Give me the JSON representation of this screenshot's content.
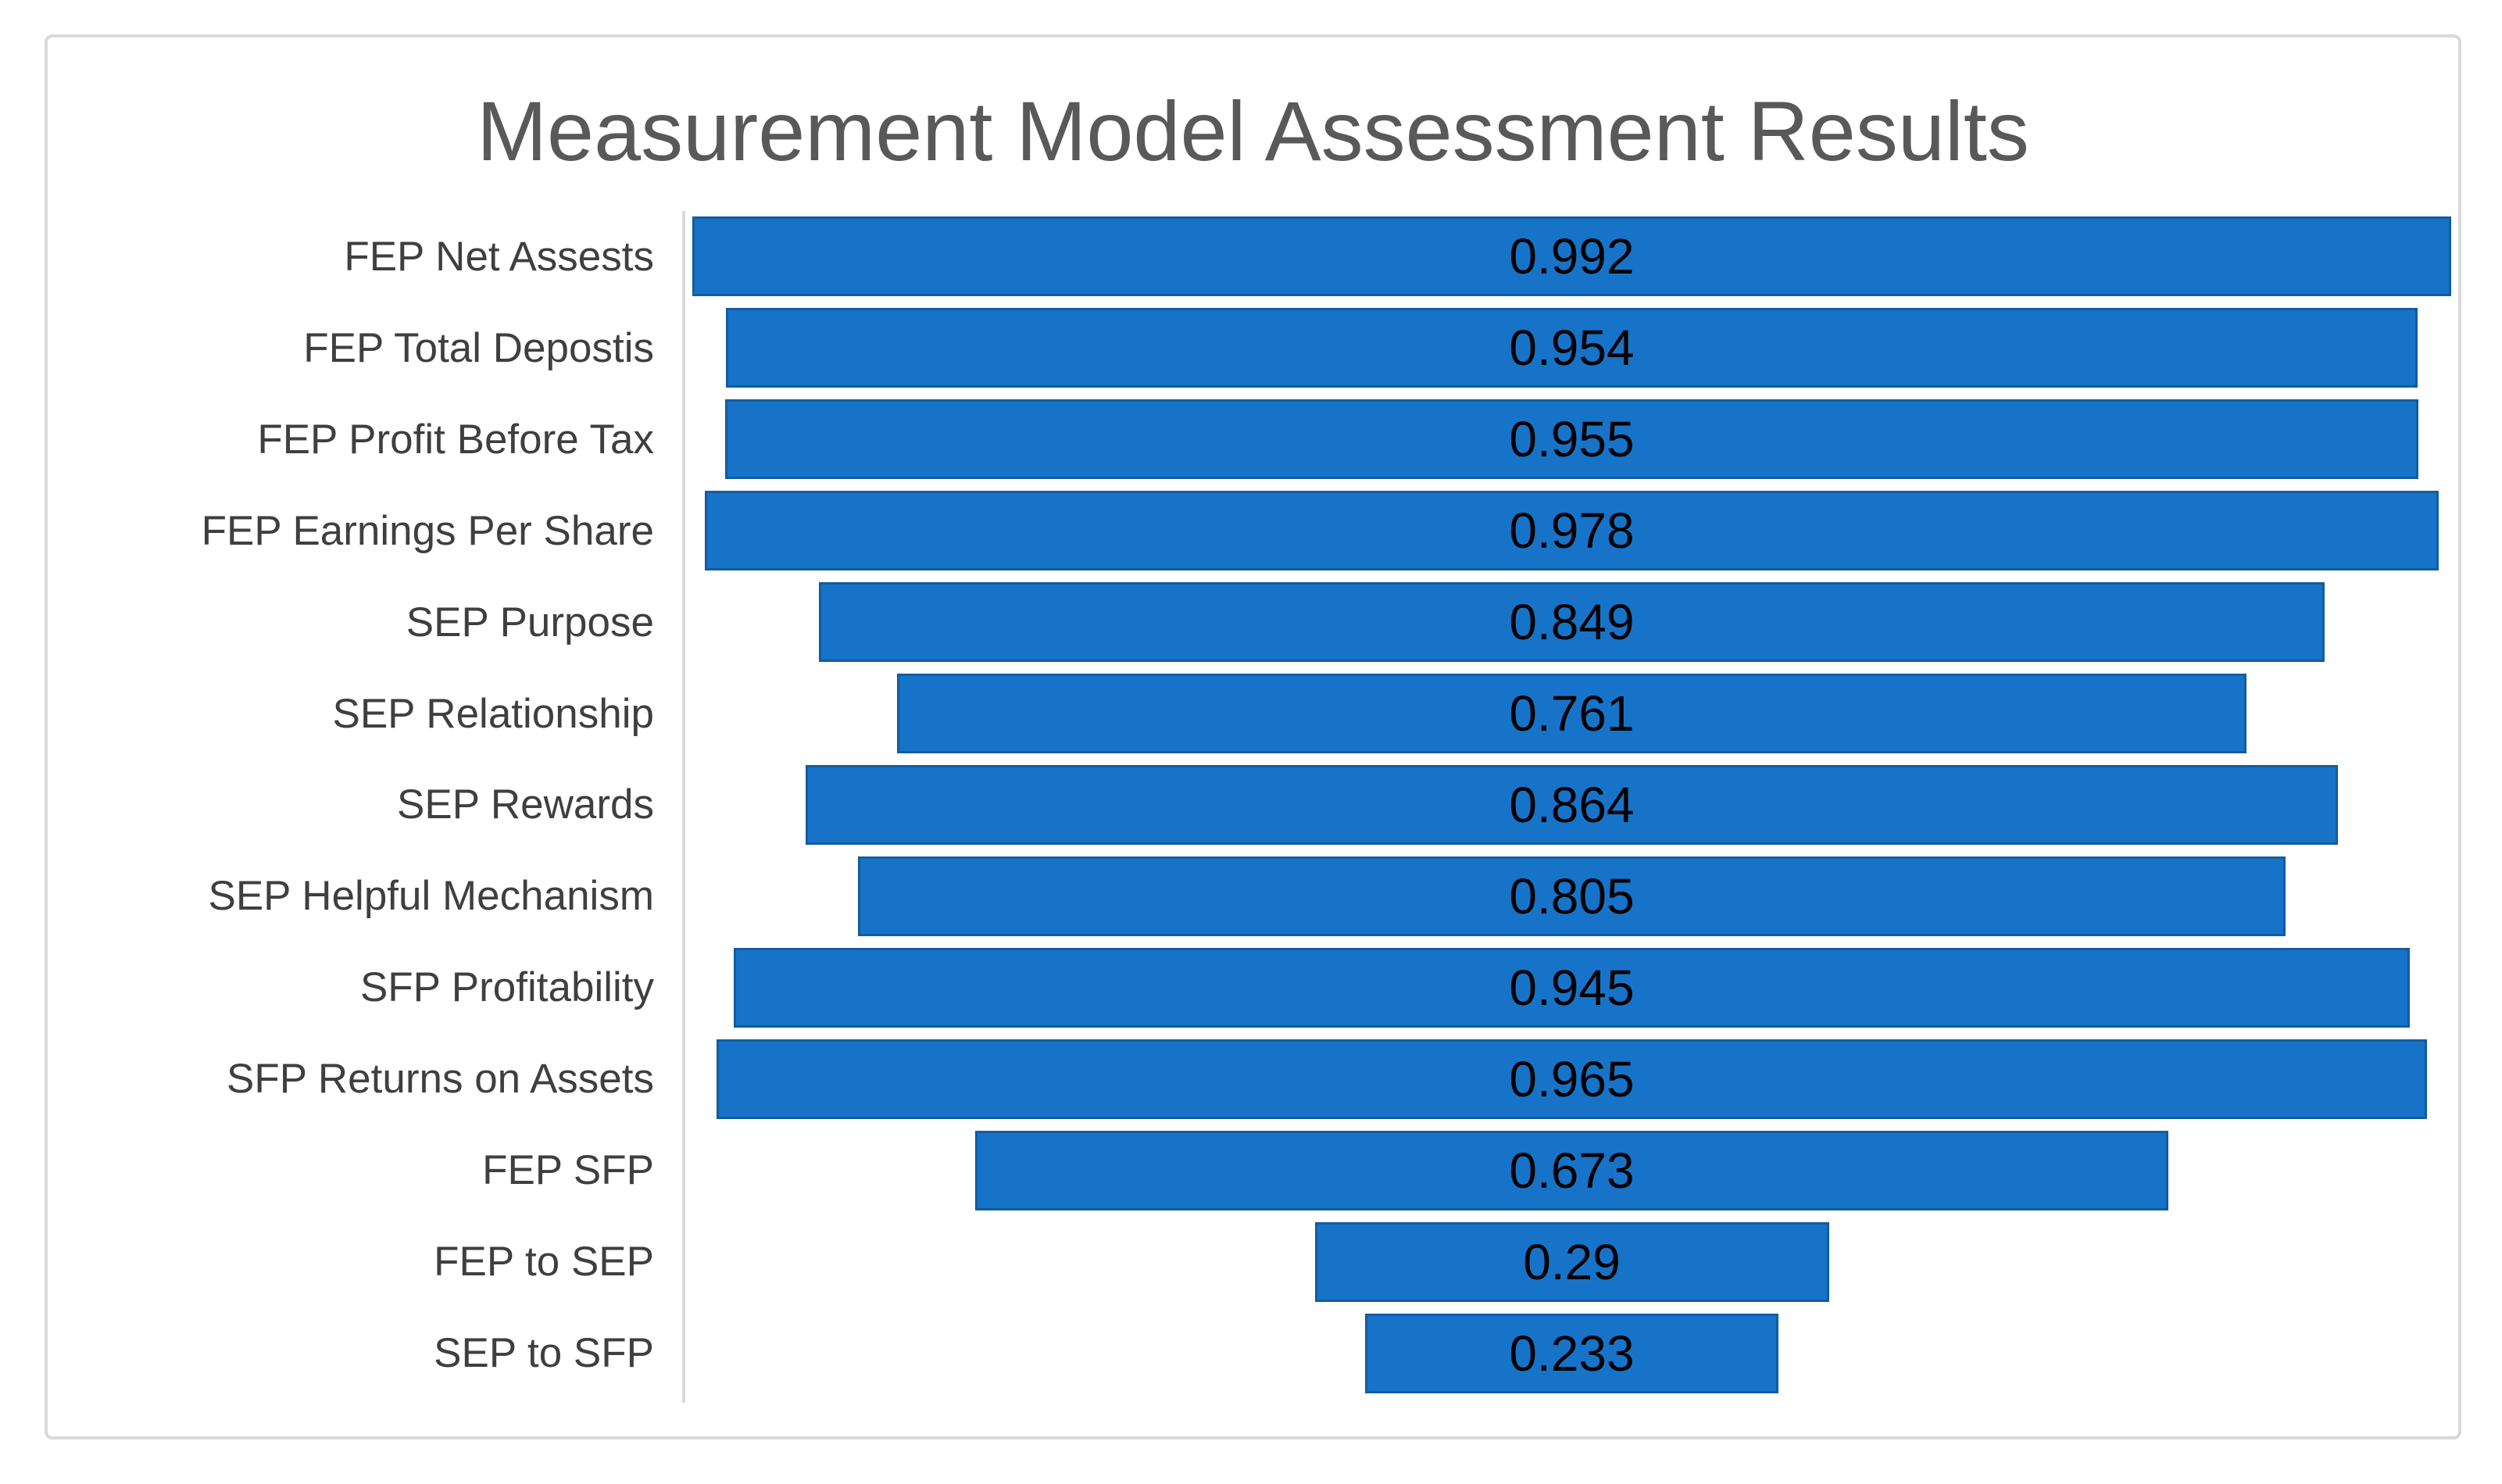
{
  "chart_data": {
    "type": "bar",
    "variant": "horizontal-centered-funnel",
    "title": "Measurement Model Assessment Results",
    "categories": [
      "FEP Net Assests",
      "FEP Total Depostis",
      "FEP Profit Before Tax",
      "FEP Earnings Per Share",
      "SEP Purpose",
      "SEP Relationship",
      "SEP Rewards",
      "SEP Helpful Mechanism",
      "SFP Profitability",
      "SFP Returns on Assets",
      "FEP SFP",
      "FEP to SEP",
      "SEP to SFP"
    ],
    "values": [
      0.992,
      0.954,
      0.955,
      0.978,
      0.849,
      0.761,
      0.864,
      0.805,
      0.945,
      0.965,
      0.673,
      0.29,
      0.233
    ],
    "data_labels": [
      "0.992",
      "0.954",
      "0.955",
      "0.978",
      "0.849",
      "0.761",
      "0.864",
      "0.805",
      "0.945",
      "0.965",
      "0.673",
      "0.29",
      "0.233"
    ],
    "xlim": [
      0,
      1
    ],
    "grid": false,
    "legend": false,
    "bars_alignment": "centered",
    "colors": {
      "bar_fill": "#1673c8",
      "bar_border": "#135ca0",
      "title_text": "#595959",
      "category_text": "#3f3f3f",
      "value_text": "#000000",
      "axis_line": "#d9d9d9",
      "card_border": "#d9d9d9",
      "background": "#ffffff"
    }
  }
}
